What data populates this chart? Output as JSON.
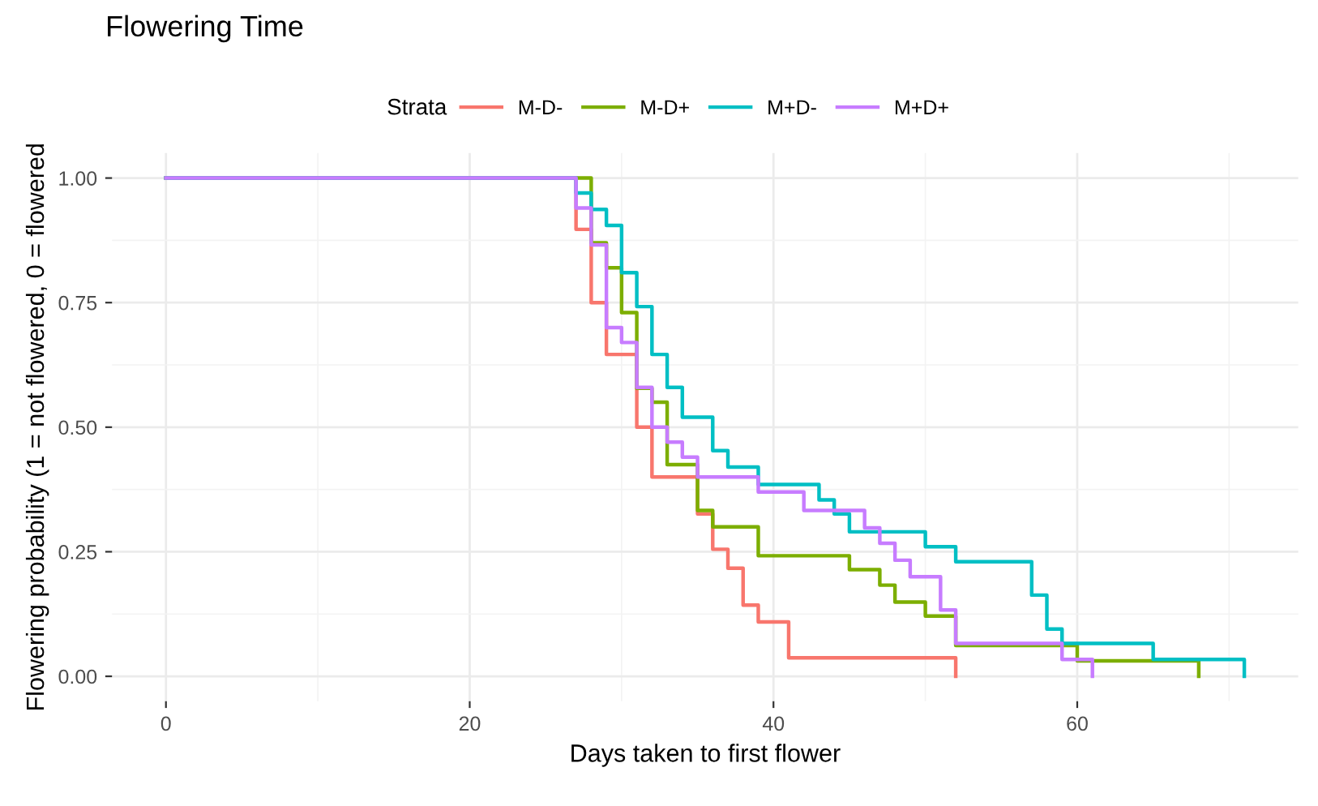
{
  "chart_data": {
    "type": "step",
    "title": "Flowering Time",
    "xlabel": "Days taken to first flower",
    "ylabel": "Flowering probability (1 = not flowered, 0 = flowered",
    "legend_title": "Strata",
    "legend": "top",
    "grid": true,
    "line_style": "solid",
    "marker": "none",
    "xlim": [
      -3.55,
      74.55
    ],
    "ylim": [
      -0.05,
      1.05
    ],
    "xticks": [
      0,
      20,
      40,
      60
    ],
    "yticks": [
      {
        "value": 0,
        "label": "0.00"
      },
      {
        "value": 0.25,
        "label": "0.25"
      },
      {
        "value": 0.5,
        "label": "0.50"
      },
      {
        "value": 0.75,
        "label": "0.75"
      },
      {
        "value": 1,
        "label": "1.00"
      }
    ],
    "series": [
      {
        "name": "M-D-",
        "color": "#f8766d",
        "x": [
          0,
          27,
          28,
          29,
          31,
          32,
          35,
          36,
          37,
          38,
          39,
          41,
          52
        ],
        "values": [
          1.0,
          0.897,
          0.75,
          0.646,
          0.5,
          0.4,
          0.326,
          0.255,
          0.217,
          0.143,
          0.109,
          0.037,
          0.0
        ]
      },
      {
        "name": "M-D+",
        "color": "#7cae00",
        "x": [
          0,
          28,
          29,
          30,
          31,
          32,
          33,
          35,
          36,
          39,
          45,
          47,
          48,
          50,
          52,
          60,
          68
        ],
        "values": [
          1.0,
          0.87,
          0.82,
          0.73,
          0.578,
          0.55,
          0.425,
          0.333,
          0.3,
          0.242,
          0.214,
          0.183,
          0.149,
          0.121,
          0.062,
          0.031,
          0.0
        ]
      },
      {
        "name": "M+D-",
        "color": "#00bfc4",
        "x": [
          0,
          27,
          28,
          29,
          30,
          31,
          32,
          33,
          34,
          36,
          37,
          39,
          43,
          44,
          45,
          50,
          52,
          57,
          58,
          59,
          65,
          71
        ],
        "values": [
          1.0,
          0.97,
          0.937,
          0.905,
          0.81,
          0.742,
          0.646,
          0.58,
          0.52,
          0.453,
          0.42,
          0.385,
          0.354,
          0.326,
          0.29,
          0.26,
          0.23,
          0.163,
          0.095,
          0.066,
          0.034,
          0.0
        ]
      },
      {
        "name": "M+D+",
        "color": "#c77cff",
        "x": [
          0,
          27,
          28,
          29,
          30,
          31,
          32,
          33,
          34,
          35,
          39,
          42,
          46,
          47,
          48,
          49,
          51,
          52,
          59,
          61
        ],
        "values": [
          1.0,
          0.94,
          0.866,
          0.7,
          0.67,
          0.58,
          0.5,
          0.47,
          0.44,
          0.4,
          0.37,
          0.333,
          0.298,
          0.267,
          0.233,
          0.2,
          0.133,
          0.066,
          0.034,
          0.0
        ]
      }
    ]
  }
}
